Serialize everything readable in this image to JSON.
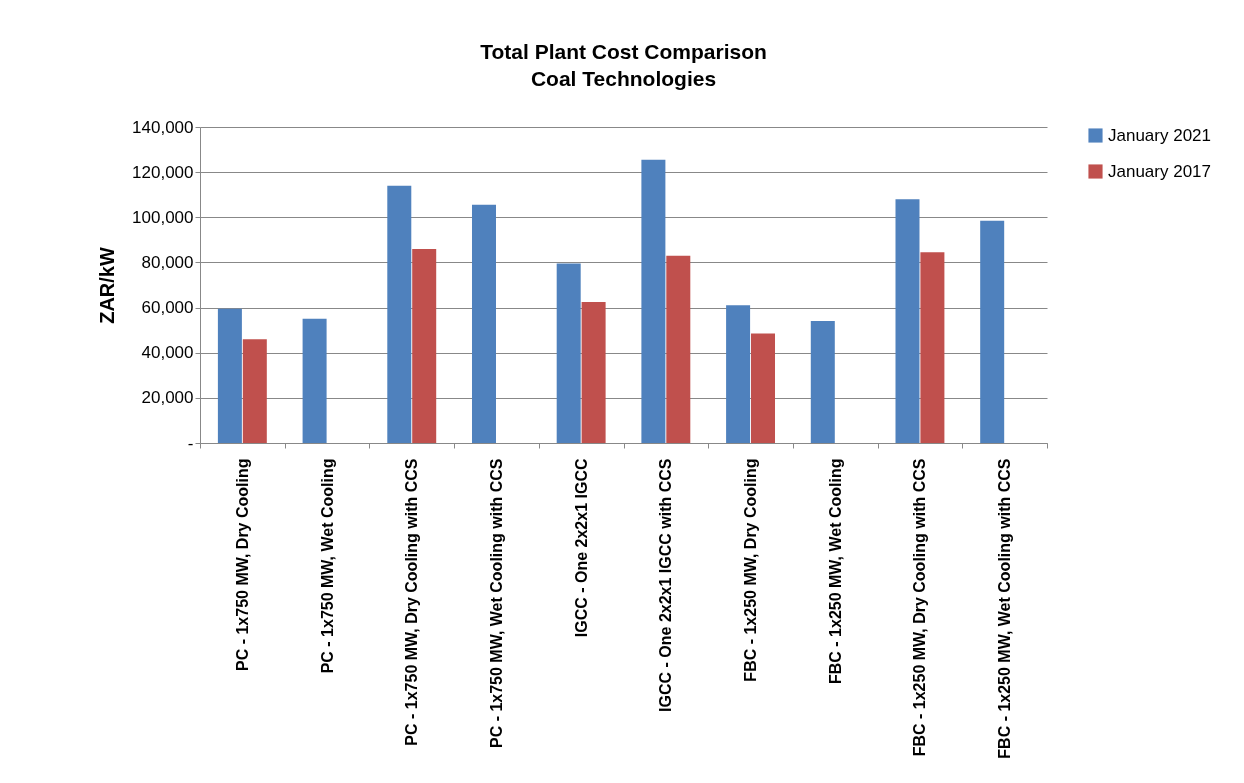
{
  "chart_data": {
    "type": "bar",
    "title": "Total Plant Cost Comparison",
    "subtitle": "Coal Technologies",
    "ylabel": "ZAR/kW",
    "categories": [
      "PC - 1x750 MW, Dry Cooling",
      "PC - 1x750 MW, Wet Cooling",
      "PC - 1x750 MW, Dry Cooling with CCS",
      "PC - 1x750 MW, Wet Cooling with CCS",
      "IGCC - One 2x2x1 IGCC",
      "IGCC - One 2x2x1 IGCC with CCS",
      "FBC - 1x250 MW, Dry Cooling",
      "FBC - 1x250 MW, Wet Cooling",
      "FBC - 1x250 MW, Dry Cooling with CCS",
      "FBC - 1x250 MW, Wet Cooling with CCS"
    ],
    "series": [
      {
        "name": "January 2021",
        "color": "#4f81bd",
        "values": [
          59500,
          55000,
          114000,
          105500,
          79500,
          125500,
          61000,
          54000,
          108000,
          98500
        ]
      },
      {
        "name": "January 2017",
        "color": "#c0504d",
        "values": [
          46000,
          null,
          86000,
          null,
          62500,
          83000,
          48500,
          null,
          84500,
          null
        ]
      }
    ],
    "ylim": [
      0,
      140000
    ],
    "yticks": [
      {
        "value": 0,
        "label": "-"
      },
      {
        "value": 20000,
        "label": "20,000"
      },
      {
        "value": 40000,
        "label": "40,000"
      },
      {
        "value": 60000,
        "label": "60,000"
      },
      {
        "value": 80000,
        "label": "80,000"
      },
      {
        "value": 100000,
        "label": "100,000"
      },
      {
        "value": 120000,
        "label": "120,000"
      },
      {
        "value": 140000,
        "label": "140,000"
      }
    ],
    "grid": "y",
    "legend": "right"
  }
}
